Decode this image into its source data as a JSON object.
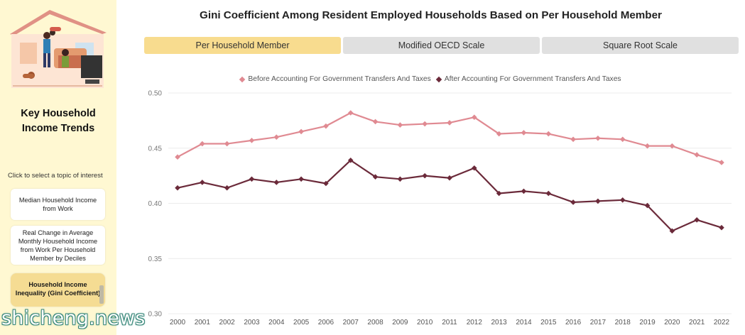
{
  "sidebar": {
    "title": "Key Household Income Trends",
    "hint": "Click to select a topic of interest",
    "topics": [
      "Median Household Income from Work",
      "Real Change in Average Monthly Household Income from Work Per Household Member by Deciles",
      "Household Income Inequality (Gini Coefficient)"
    ]
  },
  "watermark": "shicheng.news",
  "title": "Gini Coefficient Among Resident Employed Households Based on Per Household Member",
  "tabs": [
    "Per Household Member",
    "Modified OECD Scale",
    "Square Root Scale"
  ],
  "active_tab": 0,
  "colors": {
    "before": "#e08a92",
    "after": "#6b2a3a",
    "tab_active": "#f8dc8f",
    "sidebar_bg": "#fff8d2"
  },
  "chart_data": {
    "type": "line",
    "categories": [
      "2000",
      "2001",
      "2002",
      "2003",
      "2004",
      "2005",
      "2006",
      "2007",
      "2008",
      "2009",
      "2010",
      "2011",
      "2012",
      "2013",
      "2014",
      "2015",
      "2016",
      "2017",
      "2018",
      "2019",
      "2020",
      "2021",
      "2022"
    ],
    "series": [
      {
        "name": "Before Accounting For Government Transfers And Taxes",
        "values": [
          0.442,
          0.454,
          0.454,
          0.457,
          0.46,
          0.465,
          0.47,
          0.482,
          0.474,
          0.471,
          0.472,
          0.473,
          0.478,
          0.463,
          0.464,
          0.463,
          0.458,
          0.459,
          0.458,
          0.452,
          0.452,
          0.444,
          0.437
        ]
      },
      {
        "name": "After Accounting For Government Transfers And Taxes",
        "values": [
          0.414,
          0.419,
          0.414,
          0.422,
          0.419,
          0.422,
          0.418,
          0.439,
          0.424,
          0.422,
          0.425,
          0.423,
          0.432,
          0.409,
          0.411,
          0.409,
          0.401,
          0.402,
          0.403,
          0.398,
          0.375,
          0.385,
          0.378
        ]
      }
    ],
    "yticks": [
      "0.30",
      "0.35",
      "0.40",
      "0.45",
      "0.50"
    ],
    "ylim": [
      0.3,
      0.5
    ],
    "grid": true,
    "legend_position": "top-center"
  }
}
